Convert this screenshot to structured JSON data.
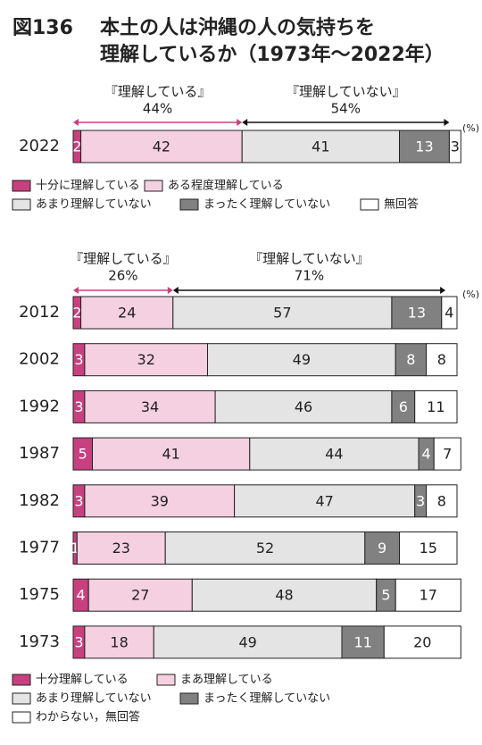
{
  "header": {
    "figure": "図136",
    "title_lines": [
      "本土の人は沖縄の人の気持ちを",
      "理解しているか（1973年〜2022年）"
    ]
  },
  "chart_data": [
    {
      "type": "stacked-bar",
      "unit": "(%)",
      "categories": [
        "2022"
      ],
      "series": [
        {
          "name": "十分に理解している",
          "color": "#c8407f",
          "label_color": "#ffffff",
          "values": [
            2
          ]
        },
        {
          "name": "ある程度理解している",
          "color": "#f5d0e1",
          "label_color": "#222222",
          "values": [
            42
          ]
        },
        {
          "name": "あまり理解していない",
          "color": "#e4e4e4",
          "label_color": "#222222",
          "values": [
            41
          ]
        },
        {
          "name": "まったく理解していない",
          "color": "#818181",
          "label_color": "#ffffff",
          "values": [
            13
          ]
        },
        {
          "name": "無回答",
          "color": "#ffffff",
          "label_color": "#222222",
          "values": [
            3
          ]
        }
      ],
      "brackets": [
        {
          "label": "『理解している』",
          "value": 44,
          "value_label": "44%",
          "color": "#c8407f"
        },
        {
          "label": "『理解していない』",
          "value": 54,
          "value_label": "54%",
          "color": "#111111"
        }
      ]
    },
    {
      "type": "stacked-bar",
      "unit": "(%)",
      "categories": [
        "2012",
        "2002",
        "1992",
        "1987",
        "1982",
        "1977",
        "1975",
        "1973"
      ],
      "series": [
        {
          "name": "十分理解している",
          "color": "#c8407f",
          "label_color": "#ffffff",
          "values": [
            2,
            3,
            3,
            5,
            3,
            1,
            4,
            3
          ]
        },
        {
          "name": "まあ理解している",
          "color": "#f5d0e1",
          "label_color": "#222222",
          "values": [
            24,
            32,
            34,
            41,
            39,
            23,
            27,
            18
          ]
        },
        {
          "name": "あまり理解していない",
          "color": "#e4e4e4",
          "label_color": "#222222",
          "values": [
            57,
            49,
            46,
            44,
            47,
            52,
            48,
            49
          ]
        },
        {
          "name": "まったく理解していない",
          "color": "#818181",
          "label_color": "#ffffff",
          "values": [
            13,
            8,
            6,
            4,
            3,
            9,
            5,
            11
          ]
        },
        {
          "name": "わからない，無回答",
          "color": "#ffffff",
          "label_color": "#222222",
          "values": [
            4,
            8,
            11,
            7,
            8,
            15,
            17,
            20
          ]
        }
      ],
      "brackets": [
        {
          "label": "『理解している』",
          "value": 26,
          "value_label": "26%",
          "color": "#c8407f"
        },
        {
          "label": "『理解していない』",
          "value": 71,
          "value_label": "71%",
          "color": "#111111"
        }
      ]
    }
  ]
}
